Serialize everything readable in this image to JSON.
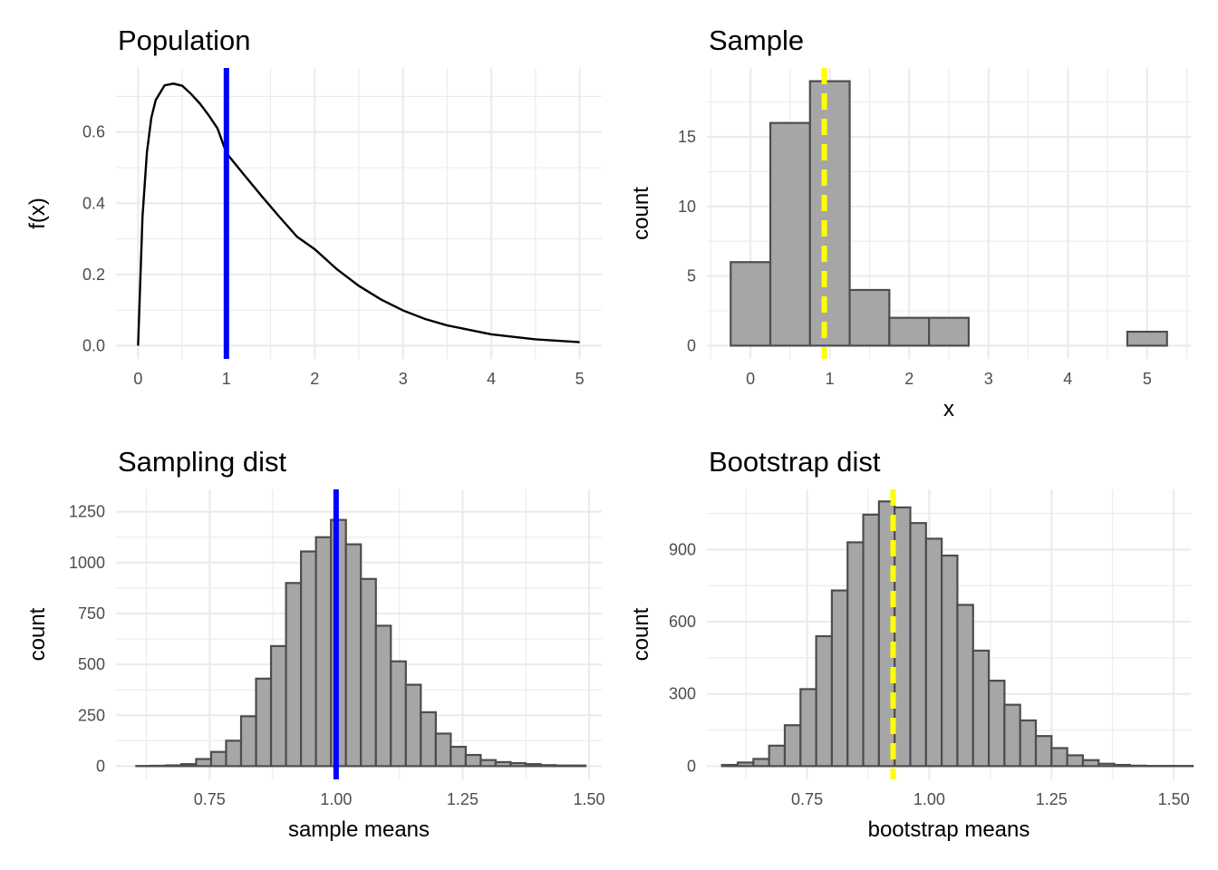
{
  "colors": {
    "true_mean": "#0000ff",
    "sample_mean": "#ffff00",
    "bar_fill": "#a6a6a6",
    "bar_outline": "#4d4d4d"
  },
  "chart_data": [
    {
      "id": "population",
      "type": "line",
      "title": "Population",
      "xlabel": "",
      "ylabel": "f(x)",
      "xlim": [
        -0.25,
        5.25
      ],
      "ylim": [
        -0.037,
        0.78
      ],
      "xticks": [
        0,
        1,
        2,
        3,
        4,
        5
      ],
      "xtick_labels": [
        "0",
        "1",
        "2",
        "3",
        "4",
        "5"
      ],
      "yticks": [
        0.0,
        0.2,
        0.4,
        0.6
      ],
      "ytick_labels": [
        "0.0",
        "0.2",
        "0.4",
        "0.6"
      ],
      "x": [
        0,
        0.05,
        0.1,
        0.15,
        0.2,
        0.3,
        0.4,
        0.5,
        0.6,
        0.7,
        0.8,
        0.9,
        1.0,
        1.2,
        1.4,
        1.6,
        1.8,
        2.0,
        2.25,
        2.5,
        2.75,
        3.0,
        3.25,
        3.5,
        4.0,
        4.5,
        5.0
      ],
      "y": [
        0,
        0.362,
        0.543,
        0.64,
        0.69,
        0.731,
        0.736,
        0.73,
        0.707,
        0.68,
        0.647,
        0.61,
        0.541,
        0.48,
        0.42,
        0.362,
        0.306,
        0.271,
        0.215,
        0.168,
        0.13,
        0.099,
        0.075,
        0.057,
        0.032,
        0.018,
        0.01
      ],
      "vline": {
        "x": 1.0,
        "style": "solid",
        "color": "#0000ff"
      }
    },
    {
      "id": "sample",
      "type": "bar",
      "title": "Sample",
      "xlabel": "x",
      "ylabel": "count",
      "xlim": [
        -0.55,
        5.55
      ],
      "ylim": [
        -0.95,
        19.95
      ],
      "xticks": [
        0,
        1,
        2,
        3,
        4,
        5
      ],
      "xtick_labels": [
        "0",
        "1",
        "2",
        "3",
        "4",
        "5"
      ],
      "yticks": [
        0,
        5,
        10,
        15
      ],
      "ytick_labels": [
        "0",
        "5",
        "10",
        "15"
      ],
      "bin_start": -0.25,
      "bin_width": 0.5,
      "counts": [
        6,
        16,
        19,
        4,
        2,
        2,
        0,
        0,
        0,
        0,
        1
      ],
      "vline": {
        "x": 0.93,
        "style": "dashed",
        "color": "#ffff00"
      }
    },
    {
      "id": "sampling",
      "type": "bar",
      "title": "Sampling dist",
      "xlabel": "sample means",
      "ylabel": "count",
      "xlim": [
        0.565,
        1.525
      ],
      "ylim": [
        -65,
        1360
      ],
      "xticks": [
        0.75,
        1.0,
        1.25,
        1.5
      ],
      "xtick_labels": [
        "0.75",
        "1.00",
        "1.25",
        "1.50"
      ],
      "yticks": [
        0,
        250,
        500,
        750,
        1000,
        1250
      ],
      "ytick_labels": [
        "0",
        "250",
        "500",
        "750",
        "1000",
        "1250"
      ],
      "bin_start": 0.605,
      "bin_width": 0.0296,
      "counts": [
        1,
        2,
        4,
        10,
        35,
        70,
        125,
        245,
        430,
        590,
        900,
        1055,
        1125,
        1210,
        1090,
        920,
        690,
        515,
        400,
        265,
        160,
        95,
        55,
        30,
        20,
        15,
        10,
        5,
        3,
        3
      ],
      "vline": {
        "x": 1.0,
        "style": "solid",
        "color": "#0000ff"
      }
    },
    {
      "id": "bootstrap",
      "type": "bar",
      "title": "Bootstrap dist",
      "xlabel": "bootstrap means",
      "ylabel": "count",
      "xlim": [
        0.545,
        1.535
      ],
      "ylim": [
        -55,
        1150
      ],
      "xticks": [
        0.75,
        1.0,
        1.25,
        1.5
      ],
      "xtick_labels": [
        "0.75",
        "1.00",
        "1.25",
        "1.50"
      ],
      "yticks": [
        0,
        300,
        600,
        900
      ],
      "ytick_labels": [
        "0",
        "300",
        "600",
        "900"
      ],
      "bin_start": 0.576,
      "bin_width": 0.0321,
      "counts": [
        5,
        15,
        30,
        85,
        170,
        320,
        540,
        730,
        930,
        1045,
        1100,
        1075,
        1010,
        945,
        875,
        670,
        480,
        355,
        255,
        190,
        125,
        75,
        45,
        25,
        10,
        5,
        2,
        1,
        1,
        1
      ],
      "vline": {
        "x": 0.926,
        "style": "dashed",
        "color": "#ffff00"
      }
    }
  ]
}
